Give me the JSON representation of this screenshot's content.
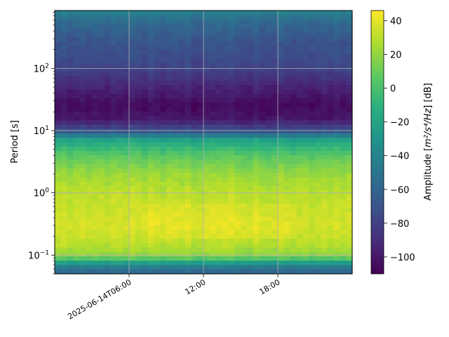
{
  "chart_data": {
    "type": "heatmap",
    "title": "",
    "xlabel": "",
    "ylabel": "Period [s]",
    "yscale": "log",
    "ylim": [
      0.05,
      850
    ],
    "xlim": [
      "2025-06-14T00:00",
      "2025-06-15T00:00"
    ],
    "x_ticks": [
      {
        "value": "2025-06-14T06:00",
        "label": "2025-06-14T06:00"
      },
      {
        "value": "2025-06-14T12:00",
        "label": "12:00"
      },
      {
        "value": "2025-06-14T18:00",
        "label": "18:00"
      }
    ],
    "y_ticks": [
      {
        "value": 0.1,
        "base": "10",
        "exp": "−1"
      },
      {
        "value": 1,
        "base": "10",
        "exp": "0"
      },
      {
        "value": 10,
        "base": "10",
        "exp": "1"
      },
      {
        "value": 100,
        "base": "10",
        "exp": "2"
      }
    ],
    "grid": true,
    "colormap": "viridis",
    "colorbar": {
      "label_prefix": "Amplitude [",
      "label_units": "m²/s⁴/Hz",
      "label_suffix": "] [dB]",
      "range": [
        -110,
        46
      ],
      "ticks": [
        40,
        20,
        0,
        -20,
        -40,
        -60,
        -80,
        -100
      ]
    },
    "time_columns": [
      "00:00",
      "00:30",
      "01:00",
      "01:30",
      "02:00",
      "02:30",
      "03:00",
      "03:30",
      "04:00",
      "04:30",
      "05:00",
      "05:30",
      "06:00",
      "06:30",
      "07:00",
      "07:30",
      "08:00",
      "08:30",
      "09:00",
      "09:30",
      "10:00",
      "10:30",
      "11:00",
      "11:30",
      "12:00",
      "12:30",
      "13:00",
      "13:30",
      "14:00",
      "14:30",
      "15:00",
      "15:30",
      "16:00",
      "16:30",
      "17:00",
      "17:30",
      "18:00",
      "18:30",
      "19:00",
      "19:30",
      "20:00",
      "20:30",
      "21:00",
      "21:30",
      "22:00",
      "22:30",
      "23:00",
      "23:30"
    ],
    "period_profile_dB": [
      {
        "period_s": 0.05,
        "dB": -62
      },
      {
        "period_s": 0.06,
        "dB": -50
      },
      {
        "period_s": 0.07,
        "dB": -40
      },
      {
        "period_s": 0.08,
        "dB": -8
      },
      {
        "period_s": 0.1,
        "dB": 20
      },
      {
        "period_s": 0.15,
        "dB": 30
      },
      {
        "period_s": 0.3,
        "dB": 36
      },
      {
        "period_s": 0.5,
        "dB": 33
      },
      {
        "period_s": 1,
        "dB": 30
      },
      {
        "period_s": 2,
        "dB": 22
      },
      {
        "period_s": 4,
        "dB": 5
      },
      {
        "period_s": 7,
        "dB": -20
      },
      {
        "period_s": 10,
        "dB": -72
      },
      {
        "period_s": 15,
        "dB": -100
      },
      {
        "period_s": 25,
        "dB": -106
      },
      {
        "period_s": 50,
        "dB": -95
      },
      {
        "period_s": 100,
        "dB": -78
      },
      {
        "period_s": 300,
        "dB": -68
      },
      {
        "period_s": 600,
        "dB": -55
      },
      {
        "period_s": 850,
        "dB": -40
      }
    ]
  }
}
